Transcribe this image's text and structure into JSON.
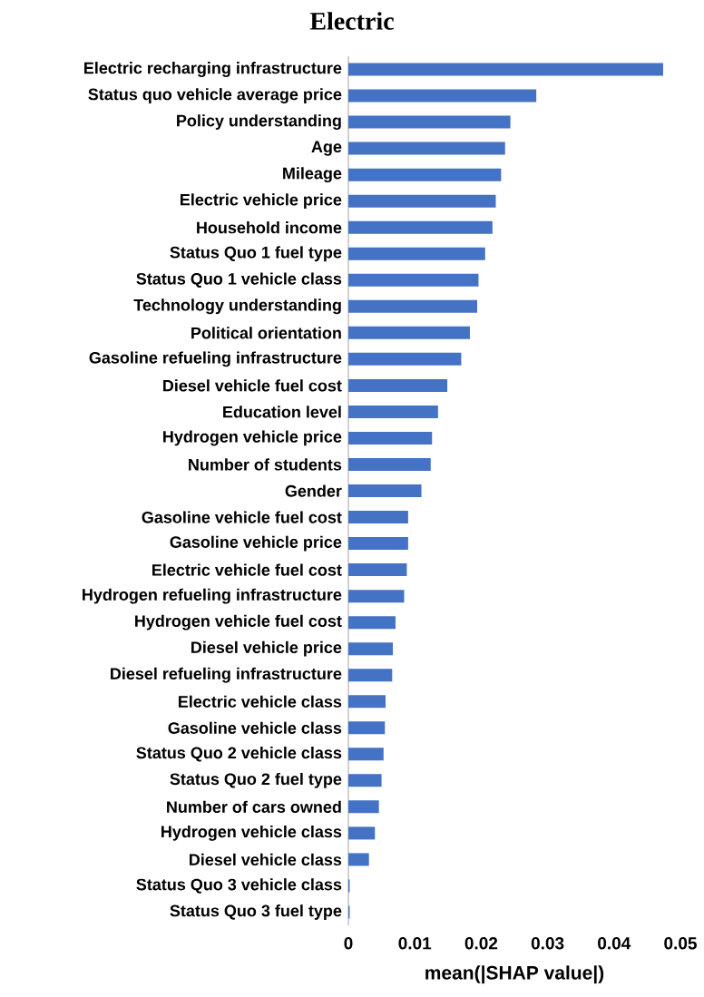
{
  "chart_data": {
    "type": "bar",
    "orientation": "horizontal",
    "title": "Electric",
    "xlabel": "mean(|SHAP value|)",
    "categories": [
      "Electric recharging infrastructure",
      "Status quo vehicle average price",
      "Policy understanding",
      "Age",
      "Mileage",
      "Electric vehicle price",
      "Household income",
      "Status Quo 1 fuel type",
      "Status Quo 1 vehicle class",
      "Technology understanding",
      "Political orientation",
      "Gasoline refueling infrastructure",
      "Diesel vehicle fuel cost",
      "Education level",
      "Hydrogen vehicle price",
      "Number of students",
      "Gender",
      "Gasoline vehicle fuel cost",
      "Gasoline vehicle price",
      "Electric vehicle fuel cost",
      "Hydrogen refueling infrastructure",
      "Hydrogen vehicle fuel cost",
      "Diesel vehicle price",
      "Diesel refueling infrastructure",
      "Electric vehicle class",
      "Gasoline vehicle class",
      "Status Quo 2 vehicle class",
      "Status Quo 2 fuel type",
      "Number of cars owned",
      "Hydrogen vehicle class",
      "Diesel vehicle class",
      "Status Quo 3 vehicle class",
      "Status Quo 3 fuel type"
    ],
    "values": [
      0.0474,
      0.0283,
      0.0244,
      0.0236,
      0.023,
      0.0222,
      0.0217,
      0.0206,
      0.0196,
      0.0194,
      0.0183,
      0.017,
      0.0149,
      0.0135,
      0.0126,
      0.0124,
      0.011,
      0.009,
      0.009,
      0.0088,
      0.0084,
      0.0071,
      0.0067,
      0.0066,
      0.0056,
      0.0055,
      0.0053,
      0.005,
      0.0046,
      0.004,
      0.0031,
      0.0002,
      0.0002
    ],
    "color": "#4472c4",
    "xlim": [
      0,
      0.05
    ],
    "xticks": [
      0,
      0.01,
      0.02,
      0.03,
      0.04,
      0.05
    ]
  }
}
